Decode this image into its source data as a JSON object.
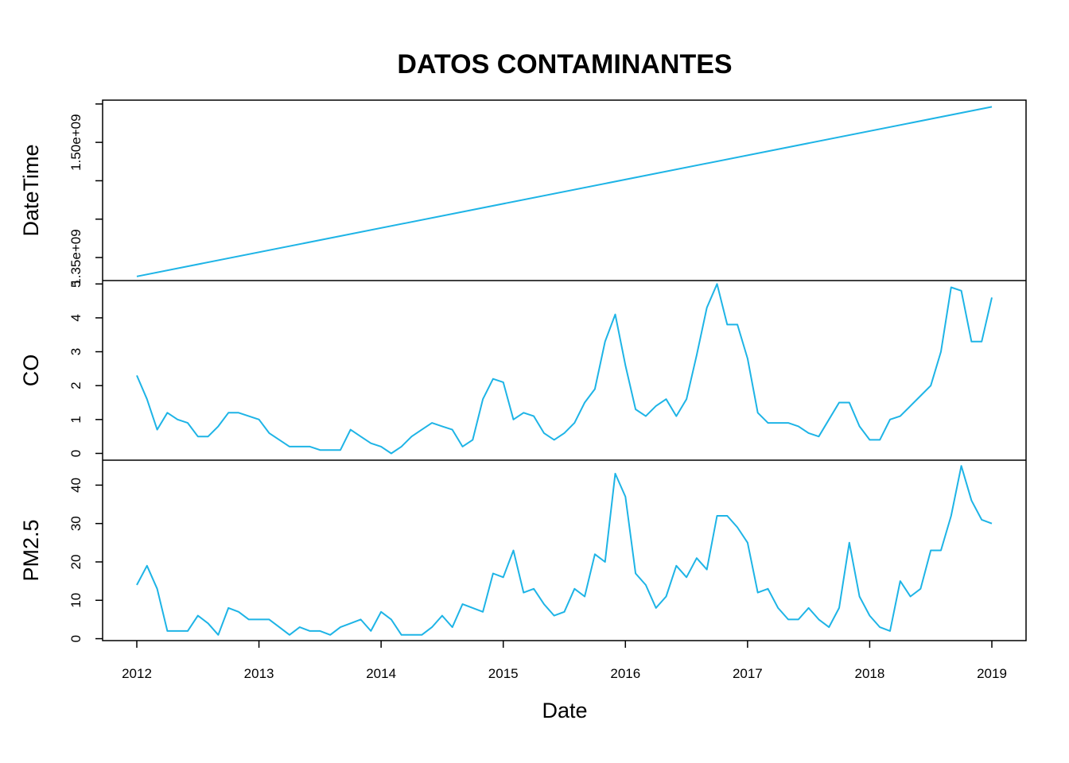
{
  "chart_data": {
    "type": "line",
    "title": "DATOS CONTAMINANTES",
    "xlabel": "Date",
    "line_color": "#1EB4E6",
    "x_ticks": [
      2012,
      2013,
      2014,
      2015,
      2016,
      2017,
      2018,
      2019
    ],
    "x_tick_labels": [
      "2012",
      "2013",
      "2014",
      "2015",
      "2016",
      "2017",
      "2018",
      "2019"
    ],
    "xlim": [
      2011.72,
      2019.28
    ],
    "x_start": 2012,
    "x_step": 0.0833333,
    "panels": [
      {
        "name": "datetime",
        "ylabel": "DateTime",
        "ylim": [
          1320000000,
          1555000000
        ],
        "y_ticks": [
          1350000000,
          1400000000,
          1450000000,
          1500000000,
          1550000000
        ],
        "y_tick_labels": [
          "1.35e+09",
          "",
          "",
          "1.50e+09",
          ""
        ],
        "x": [
          2012,
          2019
        ],
        "values": [
          1325376000,
          1546300800
        ]
      },
      {
        "name": "co",
        "ylabel": "CO",
        "ylim": [
          -0.2,
          5.1
        ],
        "y_ticks": [
          0,
          1,
          2,
          3,
          4,
          5
        ],
        "y_tick_labels": [
          "0",
          "1",
          "2",
          "3",
          "4",
          "5"
        ],
        "values": [
          2.3,
          1.6,
          0.7,
          1.2,
          1.0,
          0.9,
          0.5,
          0.5,
          0.8,
          1.2,
          1.2,
          1.1,
          1.0,
          0.6,
          0.4,
          0.2,
          0.2,
          0.2,
          0.1,
          0.1,
          0.1,
          0.7,
          0.5,
          0.3,
          0.2,
          0.0,
          0.2,
          0.5,
          0.7,
          0.9,
          0.8,
          0.7,
          0.2,
          0.4,
          1.6,
          2.2,
          2.1,
          1.0,
          1.2,
          1.1,
          0.6,
          0.4,
          0.6,
          0.9,
          1.5,
          1.9,
          3.3,
          4.1,
          2.6,
          1.3,
          1.1,
          1.4,
          1.6,
          1.1,
          1.6,
          2.9,
          4.3,
          5.0,
          3.8,
          3.8,
          2.8,
          1.2,
          0.9,
          0.9,
          0.9,
          0.8,
          0.6,
          0.5,
          1.0,
          1.5,
          1.5,
          0.8,
          0.4,
          0.4,
          1.0,
          1.1,
          1.4,
          1.7,
          2.0,
          3.0,
          4.9,
          4.8,
          3.3,
          3.3,
          4.6
        ]
      },
      {
        "name": "pm25",
        "ylabel": "PM2.5",
        "ylim": [
          -0.5,
          46.5
        ],
        "y_ticks": [
          0,
          10,
          20,
          30,
          40
        ],
        "y_tick_labels": [
          "0",
          "10",
          "20",
          "30",
          "40"
        ],
        "values": [
          14,
          19,
          13,
          2,
          2,
          2,
          6,
          4,
          1,
          8,
          7,
          5,
          5,
          5,
          3,
          1,
          3,
          2,
          2,
          1,
          3,
          4,
          5,
          2,
          7,
          5,
          1,
          1,
          1,
          3,
          6,
          3,
          9,
          8,
          7,
          17,
          16,
          23,
          12,
          13,
          9,
          6,
          7,
          13,
          11,
          22,
          20,
          43,
          37,
          17,
          14,
          8,
          11,
          19,
          16,
          21,
          18,
          32,
          32,
          29,
          25,
          12,
          13,
          8,
          5,
          5,
          8,
          5,
          3,
          8,
          25,
          11,
          6,
          3,
          2,
          15,
          11,
          13,
          23,
          23,
          32,
          45,
          36,
          31,
          30
        ]
      }
    ]
  }
}
